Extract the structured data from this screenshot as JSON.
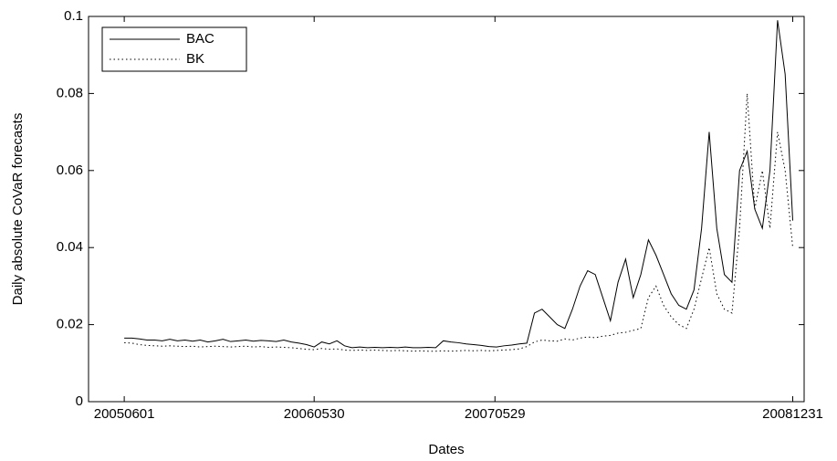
{
  "chart_data": {
    "type": "line",
    "xlabel": "Dates",
    "ylabel": "Daily absolute CoVaR forecasts",
    "x": [
      0,
      10,
      20,
      30,
      40,
      50,
      60,
      70,
      80,
      90,
      100,
      110,
      120,
      130,
      140,
      150,
      160,
      170,
      180,
      190,
      200,
      210,
      220,
      230,
      240,
      250,
      260,
      270,
      280,
      290,
      300,
      310,
      320,
      330,
      340,
      350,
      360,
      370,
      380,
      390,
      400,
      410,
      420,
      430,
      440,
      450,
      460,
      470,
      480,
      490,
      500,
      510,
      520,
      530,
      540,
      550,
      560,
      570,
      580,
      590,
      600,
      610,
      620,
      630,
      640,
      650,
      660,
      670,
      680,
      690,
      700,
      710,
      720,
      730,
      740,
      750,
      760,
      770,
      780,
      790,
      800,
      810,
      820,
      830,
      840,
      850,
      860,
      870,
      880
    ],
    "series": [
      {
        "name": "BAC",
        "color": "#000000",
        "dash": "solid",
        "values": [
          0.0165,
          0.0165,
          0.0163,
          0.016,
          0.016,
          0.0158,
          0.0162,
          0.0158,
          0.016,
          0.0157,
          0.016,
          0.0155,
          0.0158,
          0.0162,
          0.0156,
          0.0158,
          0.016,
          0.0157,
          0.0159,
          0.0158,
          0.0156,
          0.016,
          0.0155,
          0.0152,
          0.0148,
          0.0142,
          0.0155,
          0.015,
          0.0158,
          0.0145,
          0.014,
          0.0142,
          0.014,
          0.0141,
          0.014,
          0.0141,
          0.014,
          0.0142,
          0.014,
          0.014,
          0.0141,
          0.014,
          0.0158,
          0.0155,
          0.0153,
          0.015,
          0.0148,
          0.0146,
          0.0143,
          0.0142,
          0.0145,
          0.0147,
          0.015,
          0.0152,
          0.023,
          0.024,
          0.022,
          0.02,
          0.019,
          0.024,
          0.03,
          0.034,
          0.033,
          0.027,
          0.021,
          0.031,
          0.037,
          0.027,
          0.033,
          0.042,
          0.038,
          0.033,
          0.028,
          0.025,
          0.024,
          0.029,
          0.045,
          0.07,
          0.045,
          0.033,
          0.031,
          0.06,
          0.065,
          0.05,
          0.045,
          0.06,
          0.099,
          0.085,
          0.047
        ]
      },
      {
        "name": "BK",
        "color": "#000000",
        "dash": "dotted",
        "values": [
          0.0153,
          0.0152,
          0.0148,
          0.0146,
          0.0145,
          0.0144,
          0.0145,
          0.0144,
          0.0143,
          0.0144,
          0.0142,
          0.0143,
          0.0144,
          0.0143,
          0.0142,
          0.0143,
          0.0144,
          0.0142,
          0.0143,
          0.0141,
          0.0142,
          0.0141,
          0.014,
          0.0138,
          0.0136,
          0.0135,
          0.0138,
          0.0136,
          0.0137,
          0.0134,
          0.0133,
          0.0134,
          0.0133,
          0.0134,
          0.0133,
          0.0132,
          0.0133,
          0.0132,
          0.0131,
          0.0132,
          0.0131,
          0.0131,
          0.0132,
          0.0131,
          0.0132,
          0.0133,
          0.0132,
          0.0133,
          0.0132,
          0.0133,
          0.0134,
          0.0135,
          0.0137,
          0.0143,
          0.0155,
          0.016,
          0.0158,
          0.0157,
          0.0163,
          0.016,
          0.0165,
          0.0168,
          0.0166,
          0.017,
          0.0172,
          0.0178,
          0.018,
          0.0185,
          0.019,
          0.027,
          0.03,
          0.025,
          0.022,
          0.02,
          0.019,
          0.024,
          0.032,
          0.04,
          0.028,
          0.024,
          0.023,
          0.045,
          0.08,
          0.05,
          0.06,
          0.045,
          0.07,
          0.06,
          0.04
        ]
      }
    ],
    "xlim": [
      -47,
      895
    ],
    "xticks": [
      {
        "value": 0,
        "label": "20050601"
      },
      {
        "value": 250,
        "label": "20060530"
      },
      {
        "value": 488,
        "label": "20070529"
      },
      {
        "value": 880,
        "label": "20081231"
      }
    ],
    "ylim": [
      0,
      0.1
    ],
    "yticks": [
      0,
      0.02,
      0.04,
      0.06,
      0.08,
      0.1
    ],
    "grid": false,
    "legend": "upper-left"
  }
}
